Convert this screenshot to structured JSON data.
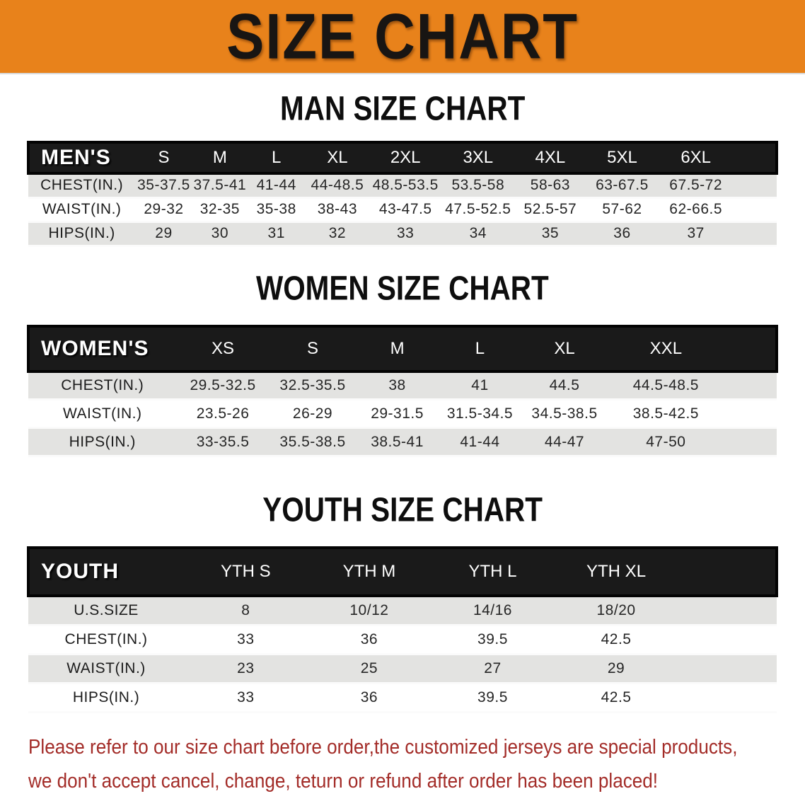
{
  "banner": {
    "title": "SIZE CHART"
  },
  "sections": [
    {
      "title": "MAN SIZE CHART",
      "table": {
        "header_label": "MEN'S",
        "columns": [
          "S",
          "M",
          "L",
          "XL",
          "2XL",
          "3XL",
          "4XL",
          "5XL",
          "6XL"
        ],
        "rows": [
          {
            "label": "CHEST(IN.)",
            "values": [
              "35-37.5",
              "37.5-41",
              "41-44",
              "44-48.5",
              "48.5-53.5",
              "53.5-58",
              "58-63",
              "63-67.5",
              "67.5-72"
            ]
          },
          {
            "label": "WAIST(IN.)",
            "values": [
              "29-32",
              "32-35",
              "35-38",
              "38-43",
              "43-47.5",
              "47.5-52.5",
              "52.5-57",
              "57-62",
              "62-66.5"
            ]
          },
          {
            "label": "HIPS(IN.)",
            "values": [
              "29",
              "30",
              "31",
              "32",
              "33",
              "34",
              "35",
              "36",
              "37"
            ]
          }
        ]
      }
    },
    {
      "title": "WOMEN SIZE CHART",
      "table": {
        "header_label": "WOMEN'S",
        "columns": [
          "XS",
          "S",
          "M",
          "L",
          "XL",
          "XXL"
        ],
        "rows": [
          {
            "label": "CHEST(IN.)",
            "values": [
              "29.5-32.5",
              "32.5-35.5",
              "38",
              "41",
              "44.5",
              "44.5-48.5"
            ]
          },
          {
            "label": "WAIST(IN.)",
            "values": [
              "23.5-26",
              "26-29",
              "29-31.5",
              "31.5-34.5",
              "34.5-38.5",
              "38.5-42.5"
            ]
          },
          {
            "label": "HIPS(IN.)",
            "values": [
              "33-35.5",
              "35.5-38.5",
              "38.5-41",
              "41-44",
              "44-47",
              "47-50"
            ]
          }
        ]
      }
    },
    {
      "title": "YOUTH SIZE CHART",
      "table": {
        "header_label": "YOUTH",
        "columns": [
          "YTH S",
          "YTH M",
          "YTH L",
          "YTH XL"
        ],
        "rows": [
          {
            "label": "U.S.SIZE",
            "values": [
              "8",
              "10/12",
              "14/16",
              "18/20"
            ]
          },
          {
            "label": "CHEST(IN.)",
            "values": [
              "33",
              "36",
              "39.5",
              "42.5"
            ]
          },
          {
            "label": "WAIST(IN.)",
            "values": [
              "23",
              "25",
              "27",
              "29"
            ]
          },
          {
            "label": "HIPS(IN.)",
            "values": [
              "33",
              "36",
              "39.5",
              "42.5"
            ]
          }
        ]
      }
    }
  ],
  "footer": {
    "line1": "Please refer to our size chart before order,the customized jerseys are special products,",
    "line2": "we don't accept cancel, change, teturn or refund after order has been placed!"
  },
  "colors": {
    "banner_orange": "#E8821B",
    "header_black": "#1a1a1a",
    "row_gray": "#E3E3E1",
    "disclaimer_red": "#A32C28"
  }
}
